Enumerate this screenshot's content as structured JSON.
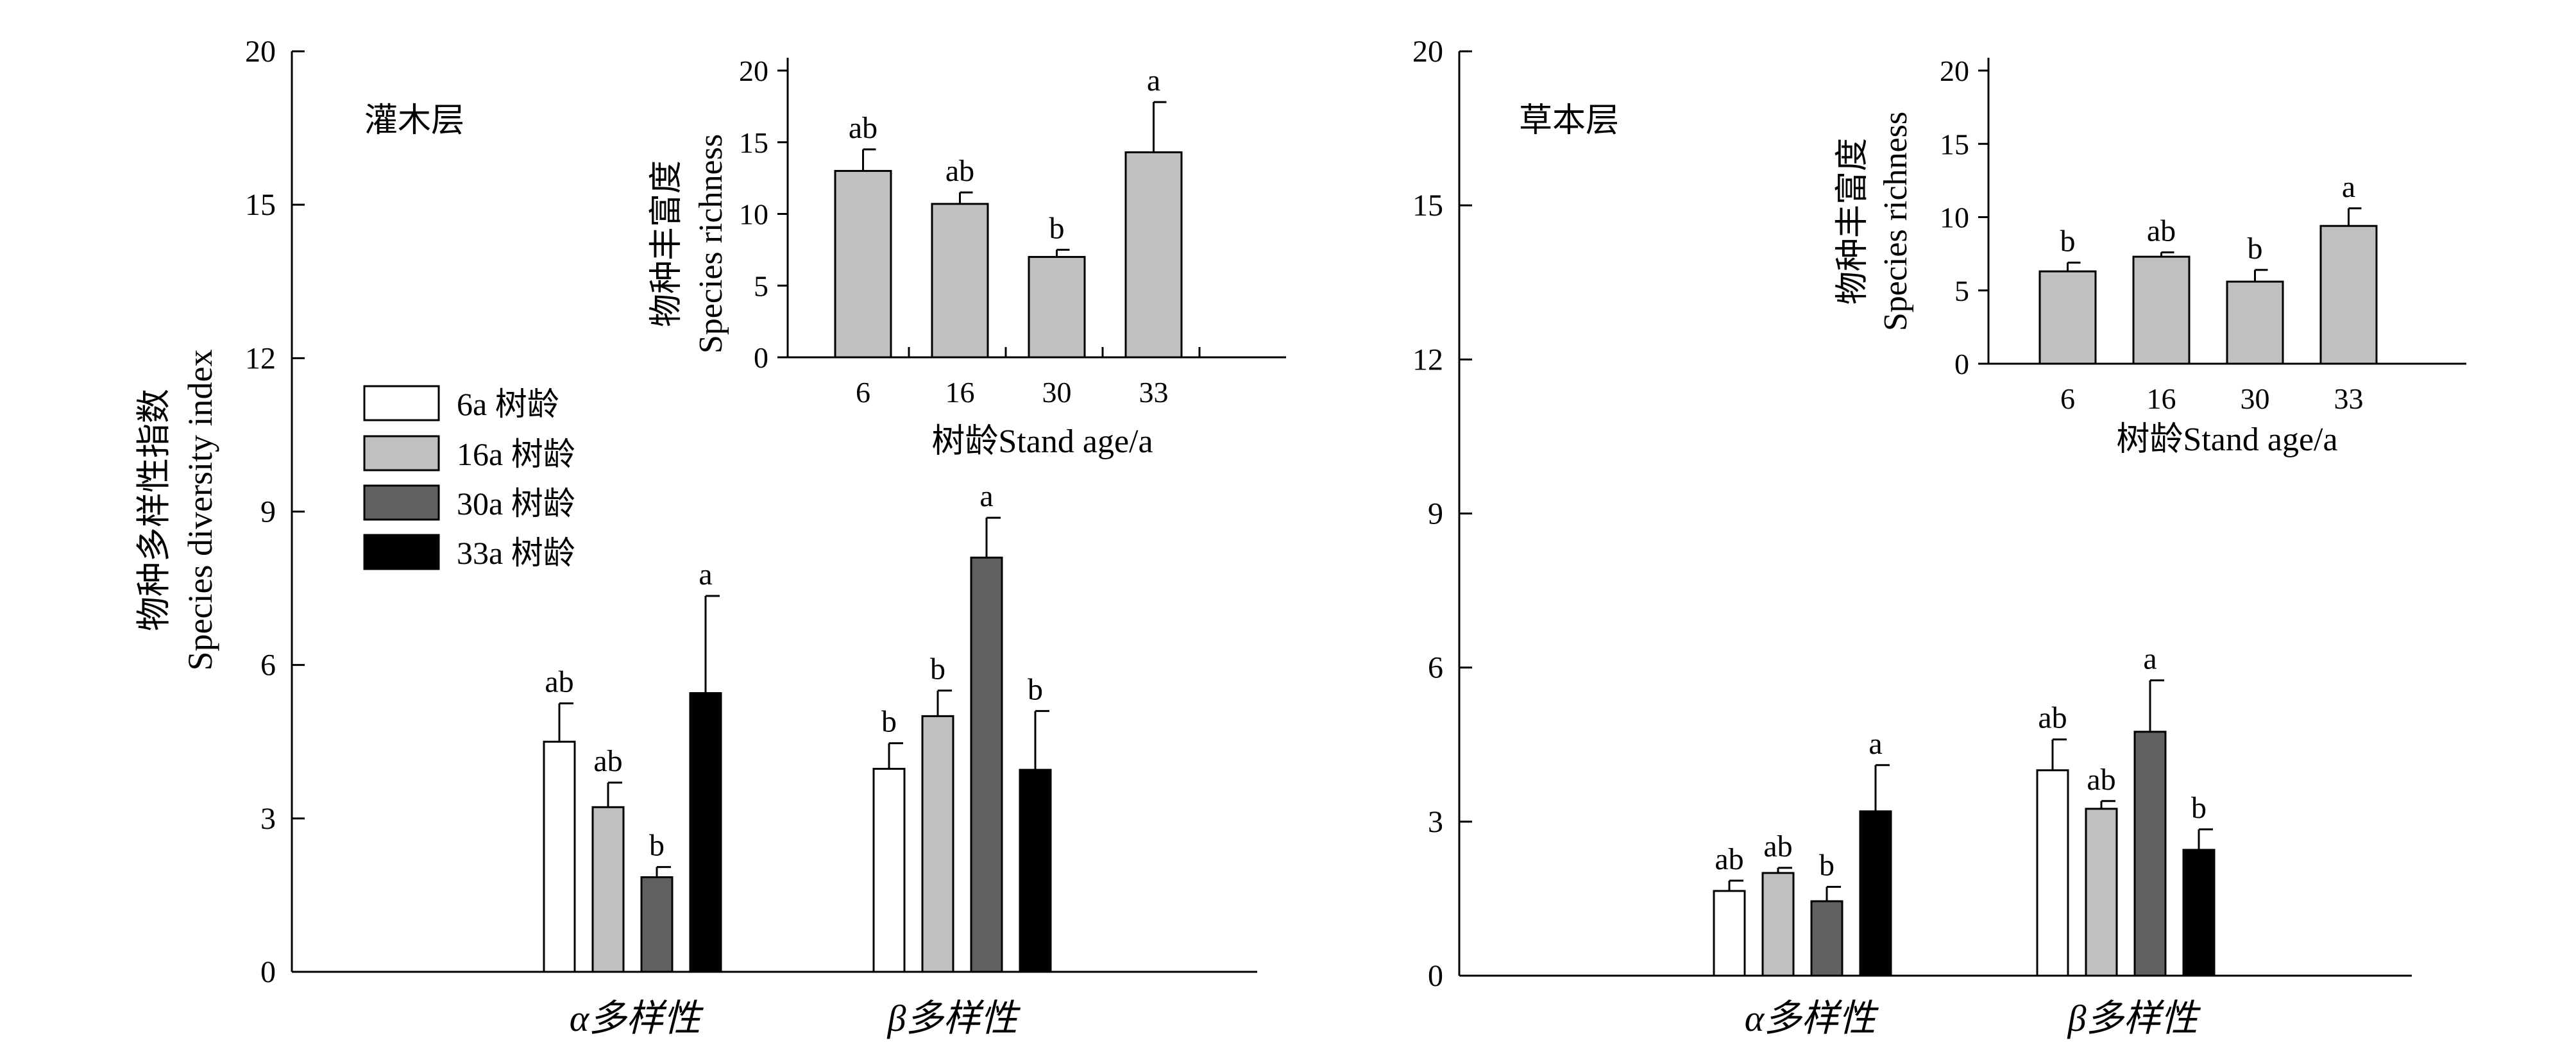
{
  "figure": {
    "y_title_cn": "物种多样性指数",
    "y_title_en": "Species diversity index"
  },
  "legend": [
    "6a 树龄",
    "16a 树龄",
    "30a 树龄",
    "33a 树龄"
  ],
  "colors": {
    "6a": "#ffffff",
    "16a": "#c0c0c0",
    "30a": "#606060",
    "33a": "#000000",
    "inset": "#c0c0c0"
  },
  "inset_axis": {
    "ylabel_cn": "物种丰富度",
    "ylabel_en": "Species richness",
    "xlabel": "树龄Stand age/a"
  },
  "chart_data": [
    {
      "type": "bar",
      "title": "灌木层",
      "categories": [
        "α多样性",
        "β多样性"
      ],
      "y_ticks": [
        "0",
        "3",
        "6",
        "9",
        "12",
        "15",
        "20"
      ],
      "series": [
        {
          "name": "6a 树龄",
          "values": [
            4.5,
            3.97
          ],
          "errors": [
            0.75,
            0.5
          ],
          "labels": [
            "ab",
            "b"
          ]
        },
        {
          "name": "16a 树龄",
          "values": [
            3.22,
            5.0
          ],
          "errors": [
            0.48,
            0.5
          ],
          "labels": [
            "ab",
            "b"
          ]
        },
        {
          "name": "30a 树龄",
          "values": [
            1.85,
            8.1
          ],
          "errors": [
            0.2,
            0.78
          ],
          "labels": [
            "b",
            "a"
          ]
        },
        {
          "name": "33a 树龄",
          "values": [
            5.45,
            3.95
          ],
          "errors": [
            1.9,
            1.15
          ],
          "labels": [
            "a",
            "b"
          ]
        }
      ],
      "inset": {
        "type": "bar",
        "categories": [
          "6",
          "16",
          "30",
          "33"
        ],
        "values": [
          13.0,
          10.7,
          7.0,
          14.3
        ],
        "errors": [
          1.5,
          0.8,
          0.5,
          3.5
        ],
        "labels": [
          "ab",
          "ab",
          "b",
          "a"
        ],
        "ylim": [
          0,
          20
        ],
        "y_ticks": [
          "0",
          "5",
          "10",
          "15",
          "20"
        ]
      }
    },
    {
      "type": "bar",
      "title": "草本层",
      "categories": [
        "α多样性",
        "β多样性"
      ],
      "y_ticks": [
        "0",
        "3",
        "6",
        "9",
        "12",
        "15",
        "20"
      ],
      "series": [
        {
          "name": "6a 树龄",
          "values": [
            1.65,
            4.0
          ],
          "errors": [
            0.2,
            0.6
          ],
          "labels": [
            "ab",
            "ab"
          ]
        },
        {
          "name": "16a 树龄",
          "values": [
            2.0,
            3.25
          ],
          "errors": [
            0.1,
            0.15
          ],
          "labels": [
            "ab",
            "ab"
          ]
        },
        {
          "name": "30a 树龄",
          "values": [
            1.45,
            4.75
          ],
          "errors": [
            0.28,
            1.0
          ],
          "labels": [
            "b",
            "a"
          ]
        },
        {
          "name": "33a 树龄",
          "values": [
            3.2,
            2.45
          ],
          "errors": [
            0.9,
            0.4
          ],
          "labels": [
            "a",
            "b"
          ]
        }
      ],
      "inset": {
        "type": "bar",
        "categories": [
          "6",
          "16",
          "30",
          "33"
        ],
        "values": [
          6.3,
          7.3,
          5.6,
          9.4
        ],
        "errors": [
          0.6,
          0.3,
          0.8,
          1.2
        ],
        "labels": [
          "b",
          "ab",
          "b",
          "a"
        ],
        "ylim": [
          0,
          20
        ],
        "y_ticks": [
          "0",
          "5",
          "10",
          "15",
          "20"
        ]
      }
    }
  ]
}
